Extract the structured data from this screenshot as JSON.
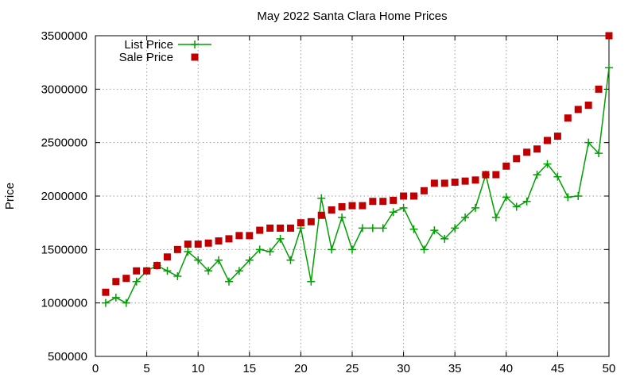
{
  "chart_data": {
    "type": "line",
    "title": "May 2022 Santa Clara Home Prices",
    "xlabel": "",
    "ylabel": "Price",
    "xlim": [
      0,
      50
    ],
    "ylim": [
      500000,
      3500000
    ],
    "x_ticks": [
      0,
      5,
      10,
      15,
      20,
      25,
      30,
      35,
      40,
      45,
      50
    ],
    "y_ticks": [
      500000,
      1000000,
      1500000,
      2000000,
      2500000,
      3000000,
      3500000
    ],
    "grid": true,
    "legend_position": "top-left",
    "x": [
      1,
      2,
      3,
      4,
      5,
      6,
      7,
      8,
      9,
      10,
      11,
      12,
      13,
      14,
      15,
      16,
      17,
      18,
      19,
      20,
      21,
      22,
      23,
      24,
      25,
      26,
      27,
      28,
      29,
      30,
      31,
      32,
      33,
      34,
      35,
      36,
      37,
      38,
      39,
      40,
      41,
      42,
      43,
      44,
      45,
      46,
      47,
      48,
      49,
      50
    ],
    "series": [
      {
        "name": "List Price",
        "style": "linespoints",
        "marker": "plus",
        "color": "#00a000",
        "values": [
          1000000,
          1050000,
          1000000,
          1200000,
          1300000,
          1350000,
          1300000,
          1250000,
          1480000,
          1400000,
          1300000,
          1400000,
          1200000,
          1300000,
          1400000,
          1500000,
          1480000,
          1600000,
          1400000,
          1700000,
          1200000,
          1980000,
          1500000,
          1800000,
          1500000,
          1700000,
          1700000,
          1700000,
          1850000,
          1890000,
          1690000,
          1500000,
          1680000,
          1600000,
          1700000,
          1800000,
          1890000,
          2200000,
          1800000,
          1990000,
          1900000,
          1950000,
          2200000,
          2300000,
          2180000,
          1990000,
          2000000,
          2500000,
          2400000,
          3200000
        ]
      },
      {
        "name": "Sale Price",
        "style": "points",
        "marker": "square",
        "color": "#c00000",
        "values": [
          1100000,
          1200000,
          1230000,
          1300000,
          1300000,
          1350000,
          1430000,
          1500000,
          1550000,
          1550000,
          1560000,
          1580000,
          1600000,
          1630000,
          1630000,
          1680000,
          1700000,
          1700000,
          1700000,
          1750000,
          1760000,
          1820000,
          1870000,
          1900000,
          1910000,
          1910000,
          1950000,
          1950000,
          1960000,
          2000000,
          2000000,
          2050000,
          2120000,
          2120000,
          2130000,
          2140000,
          2150000,
          2200000,
          2200000,
          2280000,
          2350000,
          2410000,
          2440000,
          2520000,
          2560000,
          2730000,
          2810000,
          2850000,
          3000000,
          3500000
        ]
      }
    ]
  }
}
